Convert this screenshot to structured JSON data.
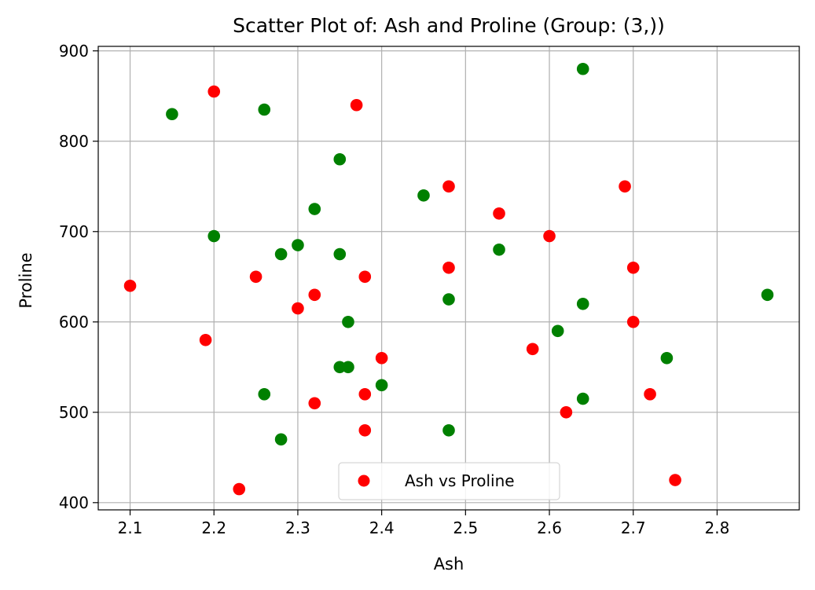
{
  "chart_data": {
    "type": "scatter",
    "title": "Scatter Plot of: Ash and Proline (Group: (3,))",
    "xlabel": "Ash",
    "ylabel": "Proline",
    "xlim": [
      2.062,
      2.898
    ],
    "ylim": [
      392,
      905
    ],
    "xticks": [
      "2.1",
      "2.2",
      "2.3",
      "2.4",
      "2.5",
      "2.6",
      "2.7",
      "2.8"
    ],
    "yticks": [
      "400",
      "500",
      "600",
      "700",
      "800",
      "900"
    ],
    "grid": true,
    "legend": {
      "position": "lower center",
      "entries": [
        "Ash vs Proline"
      ]
    },
    "series": [
      {
        "name": "Ash vs Proline",
        "color": "#ff0000",
        "points": [
          [
            2.2,
            855
          ],
          [
            2.37,
            840
          ],
          [
            2.48,
            750
          ],
          [
            2.69,
            750
          ],
          [
            2.54,
            720
          ],
          [
            2.6,
            695
          ],
          [
            2.48,
            660
          ],
          [
            2.7,
            660
          ],
          [
            2.1,
            640
          ],
          [
            2.25,
            650
          ],
          [
            2.38,
            650
          ],
          [
            2.32,
            630
          ],
          [
            2.3,
            615
          ],
          [
            2.7,
            600
          ],
          [
            2.19,
            580
          ],
          [
            2.58,
            570
          ],
          [
            2.4,
            560
          ],
          [
            2.38,
            520
          ],
          [
            2.72,
            520
          ],
          [
            2.32,
            510
          ],
          [
            2.62,
            500
          ],
          [
            2.38,
            480
          ],
          [
            2.75,
            425
          ],
          [
            2.23,
            415
          ]
        ]
      },
      {
        "color": "#008000",
        "points": [
          [
            2.64,
            880
          ],
          [
            2.15,
            830
          ],
          [
            2.26,
            835
          ],
          [
            2.35,
            780
          ],
          [
            2.45,
            740
          ],
          [
            2.32,
            725
          ],
          [
            2.2,
            695
          ],
          [
            2.3,
            685
          ],
          [
            2.28,
            675
          ],
          [
            2.35,
            675
          ],
          [
            2.54,
            680
          ],
          [
            2.48,
            625
          ],
          [
            2.86,
            630
          ],
          [
            2.64,
            620
          ],
          [
            2.36,
            600
          ],
          [
            2.61,
            590
          ],
          [
            2.74,
            560
          ],
          [
            2.35,
            550
          ],
          [
            2.36,
            550
          ],
          [
            2.4,
            530
          ],
          [
            2.26,
            520
          ],
          [
            2.64,
            515
          ],
          [
            2.48,
            480
          ],
          [
            2.28,
            470
          ]
        ]
      }
    ]
  }
}
